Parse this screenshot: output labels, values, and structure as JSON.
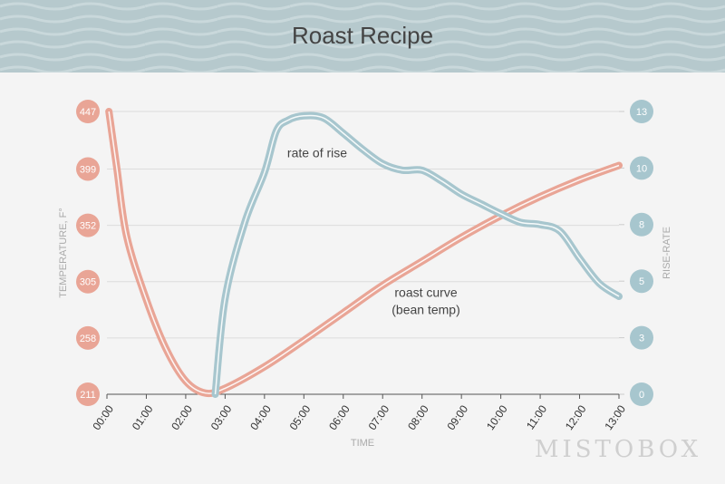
{
  "chart_data": {
    "type": "line",
    "title": "Roast Recipe",
    "x_label": "TIME",
    "y_label": "TEMPERATURE, F°",
    "y2_label": "RISE-RATE",
    "annotations": [
      "rate of rise",
      "roast curve",
      "(bean temp)"
    ],
    "watermark": "MISTOBOX",
    "xlim": [
      0,
      13
    ],
    "xticks": [
      {
        "value": 0,
        "label": "00:00"
      },
      {
        "value": 1,
        "label": "01:00"
      },
      {
        "value": 2,
        "label": "02:00"
      },
      {
        "value": 3,
        "label": "03:00"
      },
      {
        "value": 4,
        "label": "04:00"
      },
      {
        "value": 5,
        "label": "05:00"
      },
      {
        "value": 6,
        "label": "06:00"
      },
      {
        "value": 7,
        "label": "07:00"
      },
      {
        "value": 8,
        "label": "08:00"
      },
      {
        "value": 9,
        "label": "09:00"
      },
      {
        "value": 10,
        "label": "10:00"
      },
      {
        "value": 11,
        "label": "11:00"
      },
      {
        "value": 12,
        "label": "12:00"
      },
      {
        "value": 13,
        "label": "13:00"
      }
    ],
    "ylim": [
      211,
      447
    ],
    "yticks": [
      211,
      258,
      305,
      352,
      399,
      447
    ],
    "y2lim": [
      0,
      13
    ],
    "y2ticks": [
      0,
      {
        "value": 2.6,
        "label": "3"
      },
      {
        "value": 5.2,
        "label": "5"
      },
      {
        "value": 7.8,
        "label": "8"
      },
      {
        "value": 10.4,
        "label": "10"
      },
      13
    ],
    "grid": true,
    "series": [
      {
        "name": "roast curve",
        "color": "#e9a596",
        "x": [
          0.05,
          0.25,
          0.5,
          1,
          1.5,
          2,
          2.5,
          3,
          4,
          5,
          6,
          7,
          8,
          9,
          10,
          11,
          12,
          13
        ],
        "values": [
          447,
          400,
          343,
          290,
          249,
          222,
          212,
          216,
          234,
          256,
          279,
          302,
          322,
          342,
          360,
          376,
          390,
          402
        ]
      },
      {
        "name": "rate of rise",
        "color": "#a7c6ce",
        "axis": "y2",
        "x": [
          2.75,
          3,
          3.5,
          4,
          4.3,
          4.6,
          5,
          5.5,
          6,
          6.5,
          7,
          7.5,
          8,
          8.5,
          9,
          9.5,
          10,
          10.5,
          11,
          11.5,
          12,
          12.5,
          13
        ],
        "values": [
          0,
          4.4,
          7.9,
          10.2,
          12.1,
          12.6,
          12.8,
          12.7,
          12.0,
          11.25,
          10.6,
          10.3,
          10.3,
          9.8,
          9.2,
          8.75,
          8.3,
          7.9,
          7.8,
          7.5,
          6.25,
          5.1,
          4.5
        ]
      }
    ]
  }
}
